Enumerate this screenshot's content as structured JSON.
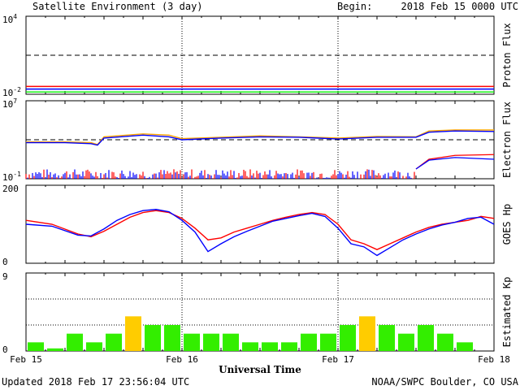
{
  "header": {
    "title": "Satellite Environment (3 day)",
    "begin_label": "Begin:",
    "begin_value": "2018 Feb 15 0000 UTC"
  },
  "footer": {
    "updated": "Updated 2018 Feb 17 23:56:04 UTC",
    "credit": "NOAA/SWPC Boulder, CO USA"
  },
  "x_axis": {
    "title": "Universal Time",
    "tick_labels": [
      "Feb 15",
      "Feb 16",
      "Feb 17",
      "Feb 18"
    ],
    "range_hours": [
      0,
      72
    ]
  },
  "colors": {
    "red": "#ff0000",
    "blue": "#0000ff",
    "green": "#00ee00",
    "orange": "#ffa500",
    "kp_green": "#33ee00",
    "kp_yellow": "#ffcc00"
  },
  "chart_data": [
    {
      "type": "line",
      "ylabel": "Proton Flux",
      "yscale": "log",
      "ylim": [
        0.01,
        10000
      ],
      "y_tick_labels": [
        "10^4",
        "10^-2"
      ],
      "threshold": 10,
      "x": [
        0,
        12,
        24,
        36,
        48,
        60,
        72
      ],
      "series": [
        {
          "color": "red",
          "values": [
            0.04,
            0.04,
            0.04,
            0.04,
            0.04,
            0.04,
            0.04
          ]
        },
        {
          "color": "blue",
          "values": [
            0.025,
            0.025,
            0.025,
            0.025,
            0.025,
            0.025,
            0.025
          ]
        },
        {
          "color": "green",
          "values": [
            0.015,
            0.015,
            0.015,
            0.015,
            0.015,
            0.015,
            0.015
          ]
        }
      ]
    },
    {
      "type": "line",
      "ylabel": "Electron Flux",
      "yscale": "log",
      "ylim": [
        0.1,
        10000000
      ],
      "y_tick_labels": [
        "10^7",
        "10^-1"
      ],
      "threshold": 1000,
      "x": [
        0,
        6,
        10,
        11,
        12,
        18,
        22,
        24,
        30,
        36,
        42,
        48,
        54,
        60,
        62,
        66,
        72
      ],
      "series": [
        {
          "color": "orange",
          "values": [
            600,
            600,
            500,
            320,
            2000,
            4000,
            3000,
            1300,
            1800,
            2500,
            2000,
            1500,
            2200,
            2000,
            8000,
            10000,
            10000
          ]
        },
        {
          "color": "blue",
          "values": [
            500,
            500,
            400,
            280,
            1500,
            3000,
            2000,
            1000,
            1500,
            2000,
            1800,
            1200,
            1800,
            1800,
            6000,
            8000,
            7000
          ]
        }
      ],
      "lower_band": {
        "range_hours": [
          0,
          60
        ],
        "values_range": [
          0.1,
          1
        ],
        "after_x": [
          60,
          62,
          66,
          72
        ],
        "after_red": [
          1,
          10,
          25,
          30
        ],
        "after_blue": [
          1,
          8,
          15,
          10
        ]
      }
    },
    {
      "type": "line",
      "ylabel": "GOES Hp",
      "ylim": [
        0,
        200
      ],
      "y_tick_labels": [
        "200",
        "0"
      ],
      "x": [
        0,
        4,
        8,
        10,
        12,
        14,
        16,
        18,
        20,
        22,
        24,
        26,
        28,
        30,
        32,
        34,
        36,
        38,
        40,
        42,
        44,
        46,
        48,
        50,
        52,
        54,
        56,
        58,
        60,
        62,
        64,
        66,
        68,
        70,
        72
      ],
      "series": [
        {
          "color": "red",
          "values": [
            110,
            100,
            75,
            68,
            82,
            100,
            118,
            130,
            135,
            130,
            115,
            90,
            60,
            65,
            80,
            90,
            100,
            110,
            118,
            125,
            130,
            125,
            100,
            60,
            50,
            35,
            50,
            65,
            80,
            92,
            100,
            105,
            110,
            120,
            115
          ]
        },
        {
          "color": "blue",
          "values": [
            100,
            95,
            72,
            70,
            88,
            110,
            125,
            135,
            138,
            132,
            110,
            80,
            30,
            50,
            68,
            82,
            95,
            108,
            115,
            122,
            128,
            120,
            90,
            50,
            42,
            20,
            40,
            60,
            75,
            88,
            98,
            105,
            115,
            118,
            100
          ]
        }
      ]
    },
    {
      "type": "bar",
      "ylabel": "Estimated Kp",
      "ylim": [
        0,
        9
      ],
      "y_tick_labels": [
        "9",
        "0"
      ],
      "interval_hours": 3,
      "values": [
        1,
        0.3,
        2,
        1,
        2,
        4,
        3,
        3,
        2,
        2,
        2,
        1,
        1,
        1,
        2,
        2,
        3,
        4,
        3,
        2,
        3,
        2,
        1,
        0
      ],
      "highlight_at_or_above": 4
    }
  ]
}
